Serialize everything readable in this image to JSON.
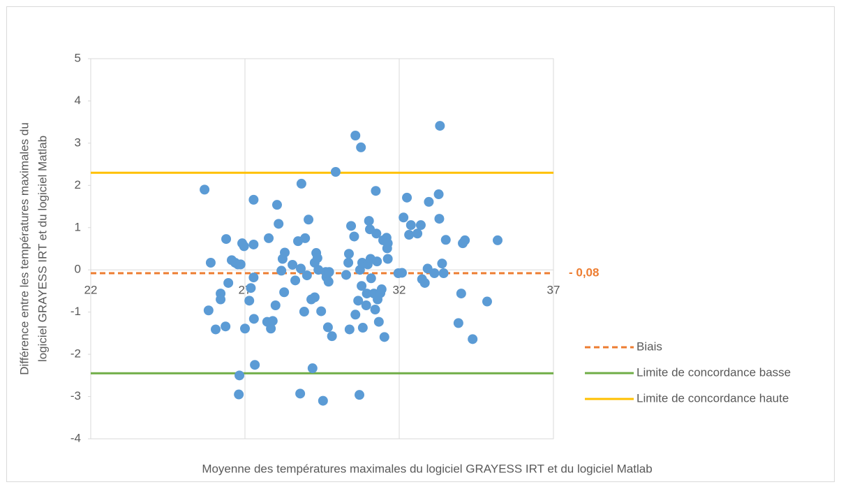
{
  "chart_data": {
    "type": "scatter",
    "x_label": "Moyenne des températures maximales du logiciel GRAYESS IRT et du logiciel Matlab",
    "y_label": [
      "Différence entre les températures maximales du",
      "logiciel GRAYESS IRT et du logiciel Matlab"
    ],
    "xlim": [
      22,
      37
    ],
    "xticks": [
      22,
      27,
      32,
      37
    ],
    "ylim": [
      -4,
      5
    ],
    "yticks": [
      -4,
      -3,
      -2,
      -1,
      0,
      1,
      2,
      3,
      4,
      5
    ],
    "grid": true,
    "legend": "right",
    "points": {
      "color": "#5b9bd5",
      "x": [
        25.69,
        25.89,
        25.82,
        26.05,
        26.21,
        26.21,
        26.37,
        26.39,
        26.46,
        26.57,
        26.68,
        26.77,
        26.86,
        26.82,
        26.8,
        26.91,
        26.97,
        27.0,
        27.14,
        27.19,
        27.28,
        27.28,
        27.28,
        27.29,
        27.32,
        27.72,
        27.77,
        27.84,
        27.9,
        27.99,
        28.04,
        28.09,
        28.18,
        28.22,
        28.29,
        28.27,
        28.54,
        28.63,
        28.72,
        28.81,
        28.83,
        28.79,
        28.92,
        28.95,
        29.01,
        29.06,
        29.15,
        29.19,
        29.26,
        29.26,
        29.31,
        29.35,
        29.38,
        29.47,
        29.53,
        29.62,
        29.64,
        29.69,
        29.71,
        29.73,
        29.82,
        29.94,
        30.28,
        30.35,
        30.37,
        30.39,
        30.44,
        30.54,
        30.58,
        30.58,
        30.67,
        30.71,
        30.73,
        30.76,
        30.78,
        30.8,
        30.82,
        30.93,
        30.95,
        30.98,
        31.02,
        31.05,
        31.07,
        31.09,
        31.18,
        31.22,
        31.24,
        31.26,
        31.28,
        31.3,
        31.34,
        31.39,
        31.43,
        31.48,
        31.52,
        31.59,
        31.61,
        31.63,
        31.63,
        31.97,
        32.09,
        32.14,
        32.25,
        32.32,
        32.38,
        32.59,
        32.7,
        32.74,
        32.83,
        32.92,
        32.96,
        33.14,
        33.28,
        33.32,
        33.3,
        33.39,
        33.44,
        33.51,
        33.92,
        34.01,
        34.06,
        34.13,
        34.38,
        34.85,
        35.19
      ],
      "y": [
        1.9,
        0.17,
        -0.96,
        -1.41,
        -0.56,
        -0.7,
        -1.34,
        0.73,
        -0.31,
        0.23,
        0.17,
        0.13,
        0.13,
        -2.5,
        -2.95,
        0.63,
        0.56,
        -1.39,
        -0.73,
        -0.43,
        -0.18,
        0.6,
        1.66,
        -1.16,
        -2.25,
        -1.23,
        0.75,
        -1.39,
        -1.21,
        -0.84,
        1.54,
        1.09,
        -0.02,
        0.26,
        0.41,
        -0.53,
        0.12,
        -0.25,
        0.68,
        0.03,
        2.04,
        -2.93,
        -0.99,
        0.75,
        -0.13,
        1.19,
        -0.7,
        -2.33,
        -0.65,
        0.17,
        0.4,
        0.28,
        0.0,
        -0.98,
        -3.1,
        -0.05,
        -0.17,
        -1.36,
        -0.28,
        -0.05,
        -1.57,
        2.32,
        -0.12,
        0.17,
        0.38,
        -1.41,
        1.04,
        0.79,
        -1.06,
        3.18,
        -0.73,
        -2.96,
        0.0,
        2.9,
        -0.38,
        0.17,
        -1.37,
        -0.84,
        -0.56,
        0.13,
        1.16,
        0.96,
        0.26,
        -0.2,
        -0.56,
        -0.94,
        1.87,
        0.86,
        0.2,
        -0.7,
        -1.23,
        -0.55,
        -0.46,
        0.7,
        -1.59,
        0.76,
        0.51,
        0.63,
        0.26,
        -0.08,
        -0.07,
        1.24,
        1.71,
        0.83,
        1.06,
        0.86,
        1.06,
        -0.22,
        -0.31,
        0.03,
        1.61,
        -0.08,
        1.79,
        3.41,
        1.21,
        0.15,
        -0.08,
        0.71,
        -1.26,
        -0.56,
        0.63,
        0.7,
        -1.64,
        -0.75,
        0.7
      ]
    },
    "lines": [
      {
        "name": "Biais",
        "value": -0.08,
        "value_label": "- 0,08",
        "color": "#ed7d31",
        "dashed": true
      },
      {
        "name": "Limite de concordance basse",
        "value": -2.45,
        "color": "#70ad47",
        "dashed": false
      },
      {
        "name": "Limite de concordance haute",
        "value": 2.3,
        "color": "#ffc000",
        "dashed": false
      }
    ]
  }
}
